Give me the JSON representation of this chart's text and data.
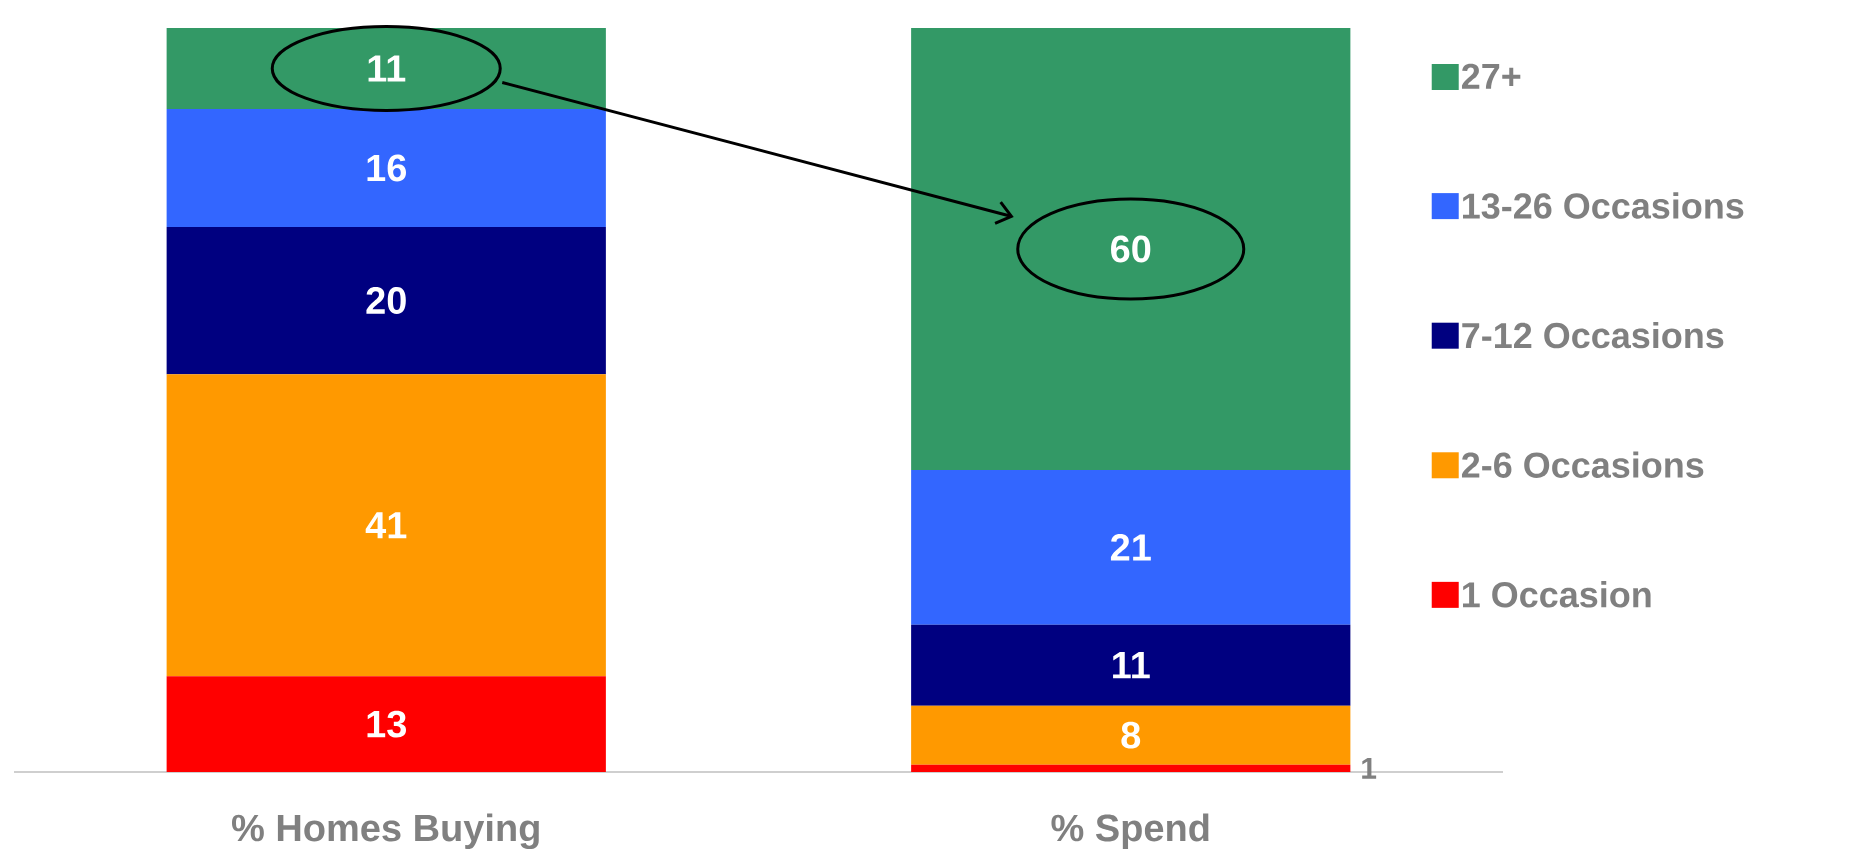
{
  "chart_data": {
    "type": "bar",
    "stacked": true,
    "legend": "right",
    "categories": [
      "% Homes Buying",
      "% Spend"
    ],
    "series": [
      {
        "name": "1 Occasion",
        "color": "#ff0000",
        "values": [
          13,
          1
        ],
        "value_labels": [
          "13",
          "1"
        ]
      },
      {
        "name": "2-6 Occasions",
        "color": "#ff9900",
        "values": [
          41,
          8
        ],
        "value_labels": [
          "41",
          "8"
        ]
      },
      {
        "name": "7-12 Occasions",
        "color": "#000080",
        "values": [
          20,
          11
        ],
        "value_labels": [
          "20",
          "11"
        ]
      },
      {
        "name": "13-26 Occasions",
        "color": "#3366ff",
        "values": [
          16,
          21
        ],
        "value_labels": [
          "16",
          "21"
        ]
      },
      {
        "name": "27+",
        "color": "#339966",
        "values": [
          11,
          60
        ],
        "value_labels": [
          "11",
          "60"
        ]
      }
    ]
  }
}
